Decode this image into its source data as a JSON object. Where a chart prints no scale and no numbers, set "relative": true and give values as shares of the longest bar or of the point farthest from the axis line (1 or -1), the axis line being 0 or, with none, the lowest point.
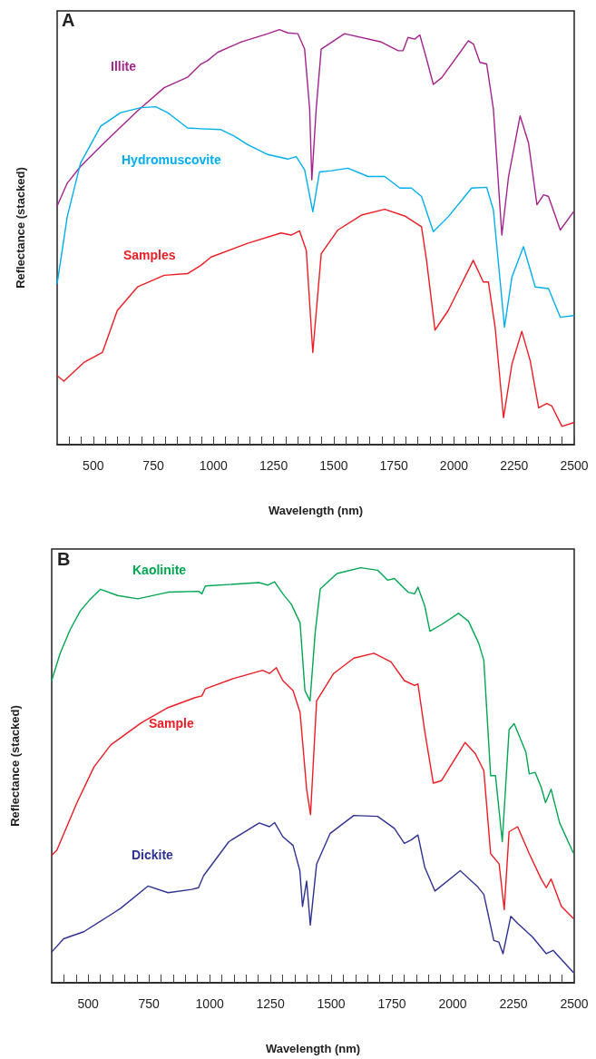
{
  "chart_data": [
    {
      "type": "line",
      "title": "A",
      "xlabel": "Wavelength (nm)",
      "ylabel": "Reflectance (stacked)",
      "relative": true,
      "grid": false,
      "legend": false,
      "marker": "none",
      "line_style": "solid",
      "xlim": [
        350,
        2500
      ],
      "xticks": [
        {
          "value": 400,
          "label": null
        },
        {
          "value": 450,
          "label": null
        },
        500,
        {
          "value": 550,
          "label": null
        },
        {
          "value": 600,
          "label": null
        },
        {
          "value": 650,
          "label": null
        },
        {
          "value": 700,
          "label": null
        },
        750,
        {
          "value": 800,
          "label": null
        },
        {
          "value": 850,
          "label": null
        },
        {
          "value": 900,
          "label": null
        },
        {
          "value": 950,
          "label": null
        },
        1000,
        {
          "value": 1050,
          "label": null
        },
        {
          "value": 1100,
          "label": null
        },
        {
          "value": 1150,
          "label": null
        },
        {
          "value": 1200,
          "label": null
        },
        1250,
        {
          "value": 1300,
          "label": null
        },
        {
          "value": 1350,
          "label": null
        },
        {
          "value": 1400,
          "label": null
        },
        {
          "value": 1450,
          "label": null
        },
        1500,
        {
          "value": 1550,
          "label": null
        },
        {
          "value": 1600,
          "label": null
        },
        {
          "value": 1650,
          "label": null
        },
        {
          "value": 1700,
          "label": null
        },
        1750,
        {
          "value": 1800,
          "label": null
        },
        {
          "value": 1850,
          "label": null
        },
        {
          "value": 1900,
          "label": null
        },
        {
          "value": 1950,
          "label": null
        },
        2000,
        {
          "value": 2050,
          "label": null
        },
        {
          "value": 2100,
          "label": null
        },
        {
          "value": 2150,
          "label": null
        },
        {
          "value": 2200,
          "label": null
        },
        2250,
        {
          "value": 2300,
          "label": null
        },
        {
          "value": 2350,
          "label": null
        },
        {
          "value": 2400,
          "label": null
        },
        {
          "value": 2450,
          "label": null
        },
        2500
      ],
      "series": [
        {
          "name": "Illite",
          "color": "#a3238e",
          "x": [
            350,
            392,
            447,
            545,
            684,
            795,
            892,
            948,
            975,
            1017,
            1114,
            1226,
            1274,
            1309,
            1351,
            1379,
            1400,
            1409,
            1427,
            1448,
            1545,
            1698,
            1768,
            1788,
            1809,
            1837,
            1858,
            1886,
            1914,
            1949,
            2060,
            2081,
            2108,
            2136,
            2164,
            2199,
            2227,
            2275,
            2310,
            2345,
            2373,
            2393,
            2442,
            2497
          ],
          "values": [
            0.575,
            0.63,
            0.67,
            0.727,
            0.804,
            0.86,
            0.885,
            0.917,
            0.925,
            0.945,
            0.97,
            0.99,
            1.0,
            0.992,
            0.99,
            0.953,
            0.808,
            0.638,
            0.808,
            0.953,
            0.99,
            0.97,
            0.949,
            0.949,
            0.981,
            0.977,
            0.987,
            0.929,
            0.868,
            0.884,
            0.973,
            0.965,
            0.921,
            0.917,
            0.808,
            0.505,
            0.646,
            0.792,
            0.727,
            0.578,
            0.602,
            0.598,
            0.517,
            0.561
          ]
        },
        {
          "name": "Hydromuscovite",
          "color": "#00aeef",
          "x": [
            350,
            392,
            447,
            531,
            614,
            698,
            760,
            809,
            892,
            948,
            1031,
            1087,
            1142,
            1226,
            1309,
            1344,
            1379,
            1413,
            1441,
            1490,
            1559,
            1643,
            1712,
            1775,
            1823,
            1865,
            1914,
            1976,
            2073,
            2136,
            2164,
            2210,
            2241,
            2289,
            2338,
            2393,
            2442,
            2497
          ],
          "values": [
            0.388,
            0.549,
            0.678,
            0.767,
            0.8,
            0.812,
            0.814,
            0.8,
            0.763,
            0.761,
            0.759,
            0.743,
            0.723,
            0.699,
            0.688,
            0.694,
            0.662,
            0.561,
            0.657,
            0.66,
            0.666,
            0.646,
            0.646,
            0.618,
            0.618,
            0.598,
            0.513,
            0.549,
            0.618,
            0.62,
            0.565,
            0.283,
            0.404,
            0.477,
            0.38,
            0.376,
            0.307,
            0.311
          ]
        },
        {
          "name": "Samples",
          "color": "#ed1c24",
          "x": [
            350,
            378,
            461,
            538,
            600,
            684,
            795,
            892,
            948,
            990,
            1142,
            1281,
            1323,
            1358,
            1386,
            1413,
            1448,
            1517,
            1615,
            1712,
            1795,
            1865,
            1886,
            1921,
            1976,
            2080,
            2122,
            2143,
            2171,
            2206,
            2241,
            2282,
            2317,
            2352,
            2386,
            2407,
            2449,
            2497
          ],
          "values": [
            0.166,
            0.153,
            0.198,
            0.222,
            0.323,
            0.38,
            0.408,
            0.412,
            0.432,
            0.452,
            0.485,
            0.51,
            0.505,
            0.515,
            0.468,
            0.222,
            0.46,
            0.517,
            0.553,
            0.567,
            0.551,
            0.525,
            0.444,
            0.276,
            0.323,
            0.444,
            0.392,
            0.392,
            0.283,
            0.065,
            0.194,
            0.273,
            0.202,
            0.089,
            0.099,
            0.093,
            0.044,
            0.053
          ]
        }
      ]
    },
    {
      "type": "line",
      "title": "B",
      "xlabel": "Wavelength (nm)",
      "ylabel": "Reflectance (stacked)",
      "relative": true,
      "grid": false,
      "legend": false,
      "marker": "none",
      "line_style": "solid",
      "xlim": [
        350,
        2500
      ],
      "xticks": [
        {
          "value": 400,
          "label": null
        },
        {
          "value": 450,
          "label": null
        },
        500,
        {
          "value": 550,
          "label": null
        },
        {
          "value": 600,
          "label": null
        },
        {
          "value": 650,
          "label": null
        },
        {
          "value": 700,
          "label": null
        },
        750,
        {
          "value": 800,
          "label": null
        },
        {
          "value": 850,
          "label": null
        },
        {
          "value": 900,
          "label": null
        },
        {
          "value": 950,
          "label": null
        },
        1000,
        {
          "value": 1050,
          "label": null
        },
        {
          "value": 1100,
          "label": null
        },
        {
          "value": 1150,
          "label": null
        },
        {
          "value": 1200,
          "label": null
        },
        1250,
        {
          "value": 1300,
          "label": null
        },
        {
          "value": 1350,
          "label": null
        },
        {
          "value": 1400,
          "label": null
        },
        {
          "value": 1450,
          "label": null
        },
        1500,
        {
          "value": 1550,
          "label": null
        },
        {
          "value": 1600,
          "label": null
        },
        {
          "value": 1650,
          "label": null
        },
        {
          "value": 1700,
          "label": null
        },
        1750,
        {
          "value": 1800,
          "label": null
        },
        {
          "value": 1850,
          "label": null
        },
        {
          "value": 1900,
          "label": null
        },
        {
          "value": 1950,
          "label": null
        },
        2000,
        {
          "value": 2050,
          "label": null
        },
        {
          "value": 2100,
          "label": null
        },
        {
          "value": 2150,
          "label": null
        },
        {
          "value": 2200,
          "label": null
        },
        2250,
        {
          "value": 2300,
          "label": null
        },
        {
          "value": 2350,
          "label": null
        },
        {
          "value": 2400,
          "label": null
        },
        {
          "value": 2450,
          "label": null
        },
        2500
      ],
      "series": [
        {
          "name": "Kaolinite",
          "color": "#00a651",
          "x": [
            350,
            385,
            426,
            468,
            510,
            551,
            621,
            704,
            829,
            954,
            968,
            982,
            1204,
            1239,
            1267,
            1301,
            1336,
            1372,
            1392,
            1413,
            1434,
            1455,
            1524,
            1621,
            1691,
            1732,
            1760,
            1816,
            1843,
            1857,
            1885,
            1906,
            1954,
            2024,
            2065,
            2107,
            2128,
            2156,
            2176,
            2204,
            2232,
            2253,
            2301,
            2315,
            2339,
            2364,
            2382,
            2405,
            2440,
            2496
          ],
          "values": [
            0.728,
            0.794,
            0.851,
            0.896,
            0.925,
            0.948,
            0.933,
            0.925,
            0.941,
            0.943,
            0.937,
            0.956,
            0.964,
            0.958,
            0.966,
            0.937,
            0.912,
            0.867,
            0.704,
            0.679,
            0.843,
            0.949,
            0.986,
            1.0,
            0.994,
            0.97,
            0.974,
            0.941,
            0.937,
            0.953,
            0.908,
            0.847,
            0.863,
            0.89,
            0.871,
            0.818,
            0.777,
            0.499,
            0.499,
            0.34,
            0.61,
            0.624,
            0.556,
            0.503,
            0.507,
            0.471,
            0.434,
            0.466,
            0.385,
            0.313
          ]
        },
        {
          "name": "Sample",
          "color": "#ed1c24",
          "x": [
            350,
            371,
            454,
            524,
            593,
            718,
            829,
            940,
            968,
            982,
            1093,
            1218,
            1246,
            1274,
            1301,
            1343,
            1372,
            1399,
            1415,
            1440,
            1510,
            1593,
            1676,
            1746,
            1801,
            1843,
            1857,
            1885,
            1920,
            1954,
            2051,
            2093,
            2128,
            2156,
            2191,
            2212,
            2232,
            2267,
            2315,
            2364,
            2385,
            2405,
            2447,
            2496
          ],
          "values": [
            0.307,
            0.319,
            0.434,
            0.52,
            0.573,
            0.626,
            0.663,
            0.687,
            0.691,
            0.708,
            0.732,
            0.753,
            0.745,
            0.759,
            0.728,
            0.704,
            0.651,
            0.466,
            0.405,
            0.679,
            0.745,
            0.782,
            0.794,
            0.773,
            0.728,
            0.716,
            0.72,
            0.606,
            0.481,
            0.487,
            0.579,
            0.552,
            0.511,
            0.311,
            0.286,
            0.176,
            0.364,
            0.376,
            0.311,
            0.25,
            0.229,
            0.25,
            0.184,
            0.155
          ]
        },
        {
          "name": "Dickite",
          "color": "#2e3192",
          "x": [
            350,
            399,
            482,
            593,
            635,
            746,
            829,
            926,
            954,
            975,
            1079,
            1204,
            1246,
            1267,
            1301,
            1343,
            1371,
            1382,
            1399,
            1414,
            1440,
            1496,
            1593,
            1691,
            1760,
            1801,
            1829,
            1857,
            1885,
            1927,
            2031,
            2100,
            2128,
            2169,
            2190,
            2207,
            2239,
            2267,
            2329,
            2385,
            2413,
            2496
          ],
          "values": [
            0.074,
            0.106,
            0.123,
            0.164,
            0.18,
            0.233,
            0.217,
            0.225,
            0.229,
            0.258,
            0.34,
            0.385,
            0.376,
            0.386,
            0.352,
            0.331,
            0.27,
            0.184,
            0.245,
            0.139,
            0.286,
            0.36,
            0.403,
            0.401,
            0.372,
            0.336,
            0.344,
            0.356,
            0.278,
            0.221,
            0.27,
            0.233,
            0.213,
            0.102,
            0.098,
            0.07,
            0.16,
            0.143,
            0.11,
            0.07,
            0.078,
            0.025
          ]
        }
      ]
    }
  ]
}
